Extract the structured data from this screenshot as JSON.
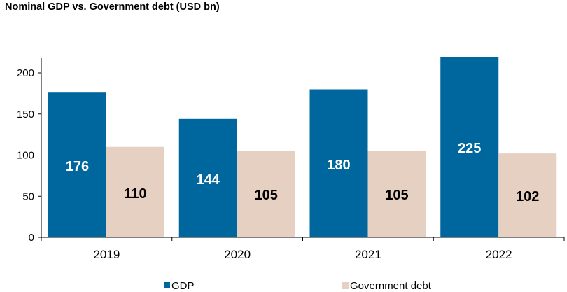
{
  "chart_data": {
    "type": "bar",
    "title": "Nominal GDP vs. Government debt (USD bn)",
    "xlabel": "",
    "ylabel": "",
    "categories": [
      "2019",
      "2020",
      "2021",
      "2022"
    ],
    "ylim": [
      0,
      220
    ],
    "yticks": [
      0,
      50,
      100,
      150,
      200
    ],
    "grid": false,
    "legend_position": "bottom",
    "series": [
      {
        "name": "GDP",
        "values": [
          176,
          144,
          180,
          225
        ],
        "color": "#00679E",
        "label_color": "#FFFFFF"
      },
      {
        "name": "Government debt",
        "values": [
          110,
          105,
          105,
          102
        ],
        "color": "#E6D0C1",
        "label_color": "#000000"
      }
    ]
  }
}
